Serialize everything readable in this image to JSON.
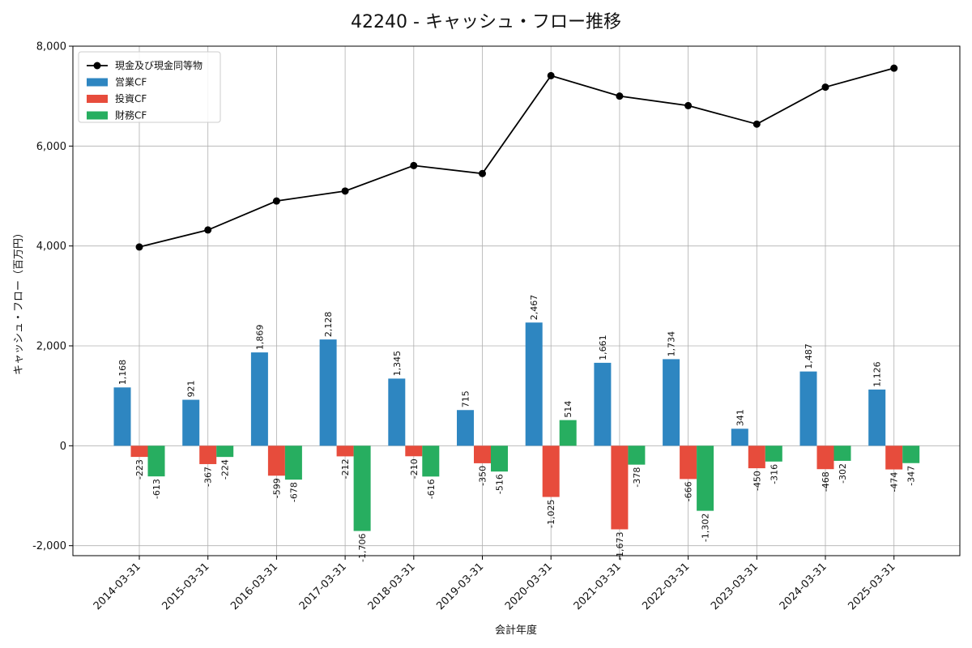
{
  "chart_data": {
    "type": "bar",
    "title": "42240 - キャッシュ・フロー推移",
    "xlabel": "会計年度",
    "ylabel": "キャッシュ・フロー（百万円）",
    "ylim": [
      -2200,
      8000
    ],
    "yticks": [
      -2000,
      0,
      2000,
      4000,
      6000,
      8000
    ],
    "ytick_labels": [
      "-2,000",
      "0",
      "2,000",
      "4,000",
      "6,000",
      "8,000"
    ],
    "grid": true,
    "legend_position": "top-left",
    "categories": [
      "2014-03-31",
      "2015-03-31",
      "2016-03-31",
      "2017-03-31",
      "2018-03-31",
      "2019-03-31",
      "2020-03-31",
      "2021-03-31",
      "2022-03-31",
      "2023-03-31",
      "2024-03-31",
      "2025-03-31"
    ],
    "series": [
      {
        "name": "営業CF",
        "kind": "bar",
        "color": "#2e86c1",
        "values": [
          1168,
          921,
          1869,
          2128,
          1345,
          715,
          2467,
          1661,
          1734,
          341,
          1487,
          1126
        ],
        "labels": [
          "1,168",
          "921",
          "1,869",
          "2,128",
          "1,345",
          "715",
          "2,467",
          "1,661",
          "1,734",
          "341",
          "1,487",
          "1,126"
        ]
      },
      {
        "name": "投資CF",
        "kind": "bar",
        "color": "#e74c3c",
        "values": [
          -223,
          -367,
          -599,
          -212,
          -210,
          -350,
          -1025,
          -1673,
          -666,
          -450,
          -468,
          -474
        ],
        "labels": [
          "-223",
          "-367",
          "-599",
          "-212",
          "-210",
          "-350",
          "-1,025",
          "-1,673",
          "-666",
          "-450",
          "-468",
          "-474"
        ]
      },
      {
        "name": "財務CF",
        "kind": "bar",
        "color": "#27ae60",
        "values": [
          -613,
          -224,
          -678,
          -1706,
          -616,
          -516,
          514,
          -378,
          -1302,
          -316,
          -302,
          -347
        ],
        "labels": [
          "-613",
          "-224",
          "-678",
          "-1,706",
          "-616",
          "-516",
          "514",
          "-378",
          "-1,302",
          "-316",
          "-302",
          "-347"
        ]
      },
      {
        "name": "現金及び現金同等物",
        "kind": "line",
        "color": "#000000",
        "values": [
          3980,
          4320,
          4900,
          5100,
          5610,
          5450,
          7410,
          7000,
          6810,
          6440,
          7180,
          7560
        ]
      }
    ]
  }
}
